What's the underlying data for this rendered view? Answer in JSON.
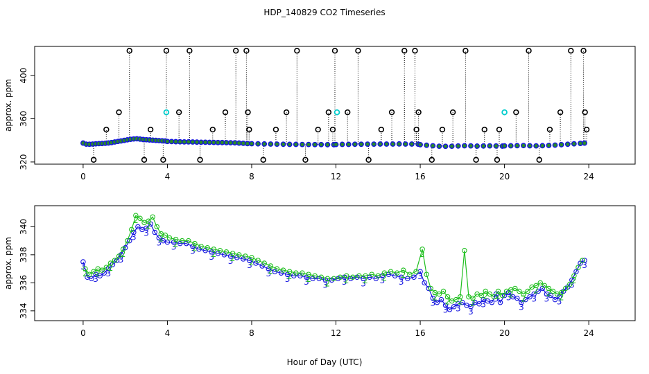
{
  "figure": {
    "title": "HDP_140829  CO2 Timeseries",
    "xlabel": "Hour of Day (UTC)"
  },
  "chart_data": [
    {
      "type": "scatter",
      "name": "top-panel",
      "ylabel": "approx. ppm",
      "xlim": [
        -2.3,
        26.2
      ],
      "ylim": [
        318,
        427
      ],
      "xticks": [
        0,
        4,
        8,
        12,
        16,
        20,
        24
      ],
      "yticks": [
        320,
        360,
        400
      ],
      "grid": false,
      "series": [
        {
          "name": "co2_main",
          "color": "#1515e0",
          "fill": "#2a8a2a",
          "marker": "circle",
          "x": [
            0.0,
            0.15,
            0.3,
            0.45,
            0.6,
            0.75,
            0.9,
            1.05,
            1.2,
            1.35,
            1.5,
            1.65,
            1.8,
            1.95,
            2.1,
            2.25,
            2.4,
            2.55,
            2.7,
            2.85,
            3.0,
            3.15,
            3.3,
            3.45,
            3.6,
            3.75,
            3.9,
            4.0,
            4.2,
            4.4,
            4.6,
            4.8,
            5.0,
            5.2,
            5.4,
            5.6,
            5.8,
            6.0,
            6.2,
            6.4,
            6.6,
            6.8,
            7.0,
            7.2,
            7.4,
            7.6,
            7.8,
            8.0,
            8.3,
            8.6,
            8.9,
            9.2,
            9.5,
            9.8,
            10.1,
            10.4,
            10.7,
            11.0,
            11.3,
            11.6,
            11.9,
            12.0,
            12.3,
            12.6,
            12.9,
            13.2,
            13.5,
            13.8,
            14.1,
            14.4,
            14.7,
            15.0,
            15.3,
            15.6,
            15.9,
            16.0,
            16.3,
            16.6,
            16.9,
            17.2,
            17.5,
            17.8,
            18.1,
            18.4,
            18.7,
            19.0,
            19.3,
            19.6,
            19.9,
            20.0,
            20.3,
            20.6,
            20.9,
            21.2,
            21.5,
            21.8,
            22.1,
            22.4,
            22.7,
            23.0,
            23.3,
            23.6,
            23.8
          ],
          "y": [
            337.5,
            336.5,
            336.4,
            336.6,
            336.8,
            337.0,
            337.1,
            337.3,
            337.6,
            338.0,
            338.5,
            339.0,
            339.5,
            340.0,
            340.5,
            341.0,
            341.3,
            341.5,
            341.2,
            340.8,
            340.6,
            340.4,
            340.2,
            340.0,
            339.8,
            339.6,
            339.5,
            339.0,
            338.9,
            338.8,
            338.7,
            338.6,
            338.6,
            338.5,
            338.4,
            338.3,
            338.3,
            338.2,
            338.1,
            338.0,
            338.0,
            337.9,
            337.8,
            337.7,
            337.5,
            337.3,
            337.0,
            336.9,
            336.8,
            336.7,
            336.6,
            336.5,
            336.4,
            336.3,
            336.3,
            336.2,
            336.2,
            336.1,
            336.1,
            336.0,
            336.0,
            336.2,
            336.3,
            336.3,
            336.4,
            336.4,
            336.5,
            336.5,
            336.6,
            336.6,
            336.6,
            336.7,
            336.6,
            336.6,
            336.5,
            336.0,
            335.5,
            335.0,
            334.6,
            334.5,
            334.6,
            334.8,
            335.0,
            334.9,
            334.7,
            334.8,
            334.9,
            334.8,
            334.7,
            334.9,
            335.0,
            335.1,
            335.2,
            335.0,
            334.9,
            335.1,
            335.3,
            335.6,
            336.0,
            336.4,
            336.8,
            337.2,
            337.5
          ]
        },
        {
          "name": "spikes_high",
          "color": "#000000",
          "marker": "circle-open",
          "x": [
            0.5,
            1.1,
            1.7,
            2.2,
            2.9,
            3.2,
            3.8,
            3.95,
            4.55,
            5.05,
            5.55,
            6.15,
            6.75,
            7.25,
            7.75,
            7.82,
            7.88,
            8.55,
            9.15,
            9.65,
            10.15,
            10.55,
            11.15,
            11.65,
            11.85,
            11.95,
            12.55,
            13.05,
            13.55,
            14.15,
            14.65,
            15.25,
            15.75,
            15.82,
            15.92,
            16.55,
            17.05,
            17.55,
            18.15,
            18.65,
            19.05,
            19.65,
            19.75,
            20.55,
            21.15,
            21.65,
            22.15,
            22.65,
            23.15,
            23.75,
            23.82,
            23.9
          ],
          "y": [
            322,
            350,
            366,
            423,
            322,
            350,
            322,
            423,
            366,
            423,
            322,
            350,
            366,
            423,
            423,
            366,
            350,
            322,
            350,
            366,
            423,
            322,
            350,
            366,
            350,
            423,
            366,
            423,
            322,
            350,
            366,
            423,
            423,
            350,
            366,
            322,
            350,
            366,
            423,
            322,
            350,
            322,
            350,
            366,
            423,
            322,
            350,
            366,
            423,
            423,
            366,
            350
          ]
        },
        {
          "name": "cal_points",
          "color": "#00cccc",
          "marker": "circle-open",
          "x": [
            3.95,
            12.05,
            20.0
          ],
          "y": [
            366,
            366,
            366
          ]
        }
      ]
    },
    {
      "type": "line",
      "name": "bottom-panel",
      "ylabel": "approx. ppm",
      "xlim": [
        -2.3,
        26.2
      ],
      "ylim": [
        333.3,
        341.5
      ],
      "xticks": [
        0,
        4,
        8,
        12,
        16,
        20,
        24
      ],
      "yticks": [
        334,
        336,
        338,
        340
      ],
      "grid": false,
      "series": [
        {
          "name": "3",
          "color": "#1515e0",
          "marker": "3",
          "x": [
            0.0,
            0.2,
            0.4,
            0.6,
            0.8,
            1.0,
            1.2,
            1.4,
            1.6,
            1.8,
            2.0,
            2.2,
            2.4,
            2.6,
            2.8,
            3.0,
            3.2,
            3.4,
            3.6,
            3.8,
            4.0,
            4.3,
            4.6,
            4.9,
            5.2,
            5.5,
            5.8,
            6.1,
            6.4,
            6.7,
            7.0,
            7.3,
            7.6,
            7.9,
            8.2,
            8.5,
            8.8,
            9.1,
            9.4,
            9.7,
            10.0,
            10.3,
            10.6,
            10.9,
            11.2,
            11.5,
            11.8,
            12.1,
            12.4,
            12.7,
            13.0,
            13.3,
            13.6,
            13.9,
            14.2,
            14.5,
            14.8,
            15.1,
            15.4,
            15.7,
            16.0,
            16.2,
            16.4,
            16.6,
            16.8,
            17.0,
            17.2,
            17.4,
            17.6,
            17.8,
            18.0,
            18.2,
            18.4,
            18.6,
            18.8,
            19.0,
            19.2,
            19.4,
            19.6,
            19.8,
            20.0,
            20.2,
            20.4,
            20.6,
            20.8,
            21.0,
            21.2,
            21.4,
            21.6,
            21.8,
            22.0,
            22.2,
            22.4,
            22.6,
            22.8,
            23.0,
            23.2,
            23.4,
            23.6,
            23.8
          ],
          "y": [
            337.5,
            336.4,
            336.3,
            336.6,
            336.5,
            336.7,
            337.0,
            337.3,
            337.6,
            338.0,
            338.5,
            339.0,
            339.6,
            340.0,
            339.8,
            339.9,
            340.2,
            339.6,
            339.2,
            339.0,
            338.9,
            338.9,
            338.8,
            338.8,
            338.6,
            338.4,
            338.3,
            338.2,
            338.1,
            338.0,
            337.9,
            337.8,
            337.7,
            337.6,
            337.4,
            337.2,
            337.0,
            336.8,
            336.7,
            336.6,
            336.5,
            336.5,
            336.4,
            336.3,
            336.3,
            336.2,
            336.2,
            336.3,
            336.4,
            336.3,
            336.4,
            336.3,
            336.4,
            336.3,
            336.5,
            336.6,
            336.5,
            336.4,
            336.3,
            336.4,
            336.8,
            336.0,
            335.6,
            334.9,
            334.6,
            334.8,
            334.4,
            334.1,
            334.3,
            334.5,
            334.6,
            334.4,
            334.3,
            334.6,
            334.5,
            334.8,
            334.7,
            334.6,
            335.2,
            334.6,
            335.1,
            335.3,
            335.0,
            334.9,
            334.6,
            334.8,
            335.0,
            335.2,
            335.4,
            335.6,
            335.2,
            335.1,
            334.8,
            335.0,
            335.4,
            335.7,
            336.2,
            336.8,
            337.4,
            337.6
          ]
        },
        {
          "name": "2",
          "color": "#1fbf1f",
          "marker": "2",
          "x": [
            0.1,
            0.3,
            0.5,
            0.7,
            0.9,
            1.1,
            1.3,
            1.5,
            1.7,
            1.9,
            2.1,
            2.3,
            2.5,
            2.7,
            2.9,
            3.1,
            3.3,
            3.5,
            3.7,
            3.9,
            4.1,
            4.4,
            4.7,
            5.0,
            5.3,
            5.6,
            5.9,
            6.2,
            6.5,
            6.8,
            7.1,
            7.4,
            7.7,
            8.0,
            8.3,
            8.6,
            8.9,
            9.2,
            9.5,
            9.8,
            10.1,
            10.4,
            10.7,
            11.0,
            11.3,
            11.6,
            11.9,
            12.2,
            12.5,
            12.8,
            13.1,
            13.4,
            13.7,
            14.0,
            14.3,
            14.6,
            14.9,
            15.2,
            15.5,
            15.8,
            16.1,
            16.3,
            16.5,
            16.7,
            16.9,
            17.1,
            17.3,
            17.5,
            17.7,
            17.9,
            18.1,
            18.3,
            18.5,
            18.7,
            18.9,
            19.1,
            19.3,
            19.5,
            19.7,
            19.9,
            20.1,
            20.3,
            20.5,
            20.7,
            20.9,
            21.1,
            21.3,
            21.5,
            21.7,
            21.9,
            22.1,
            22.3,
            22.5,
            22.7,
            22.9,
            23.1,
            23.3,
            23.5,
            23.7
          ],
          "y": [
            337.0,
            336.6,
            336.8,
            337.0,
            336.9,
            337.1,
            337.4,
            337.6,
            337.9,
            338.4,
            339.0,
            339.8,
            340.8,
            340.6,
            340.3,
            340.4,
            340.7,
            340.0,
            339.5,
            339.4,
            339.2,
            339.1,
            339.0,
            339.0,
            338.8,
            338.6,
            338.5,
            338.4,
            338.3,
            338.2,
            338.1,
            338.0,
            337.9,
            337.8,
            337.6,
            337.4,
            337.2,
            337.0,
            336.9,
            336.8,
            336.7,
            336.7,
            336.6,
            336.5,
            336.4,
            336.3,
            336.3,
            336.4,
            336.5,
            336.4,
            336.5,
            336.5,
            336.6,
            336.5,
            336.7,
            336.8,
            336.7,
            336.9,
            336.6,
            336.8,
            338.4,
            336.6,
            335.6,
            335.3,
            335.2,
            335.4,
            335.0,
            334.7,
            334.8,
            335.0,
            338.3,
            335.0,
            334.9,
            335.2,
            335.1,
            335.4,
            335.2,
            335.0,
            335.4,
            335.1,
            335.4,
            335.5,
            335.6,
            335.4,
            335.2,
            335.4,
            335.7,
            335.8,
            336.0,
            335.8,
            335.6,
            335.4,
            335.2,
            335.3,
            335.6,
            335.9,
            336.5,
            337.1,
            337.6
          ]
        }
      ]
    }
  ]
}
